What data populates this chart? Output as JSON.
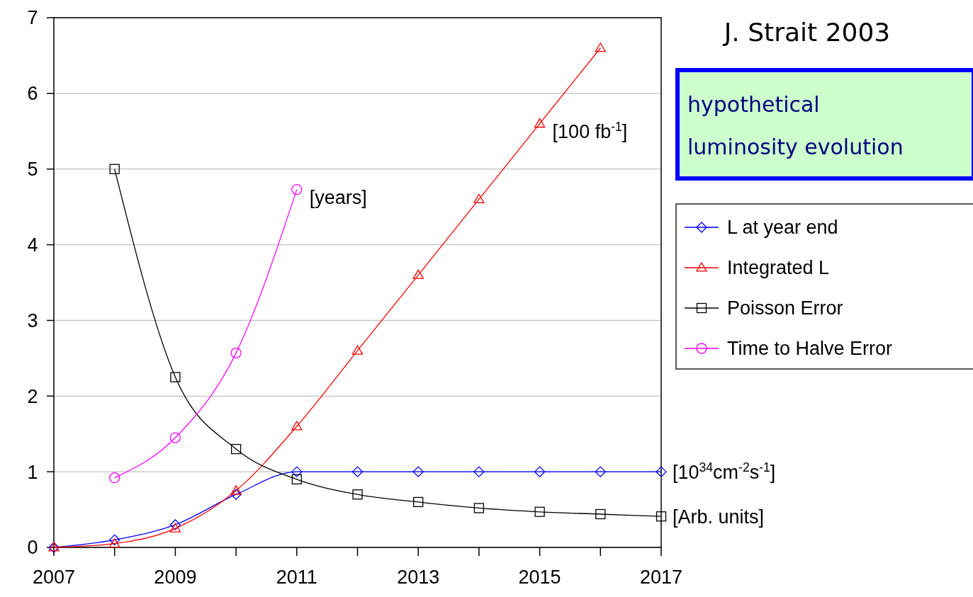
{
  "chart_data": {
    "type": "line",
    "title": "J. Strait 2003",
    "subtitle": "hypothetical luminosity evolution",
    "x": [
      2007,
      2008,
      2009,
      2010,
      2011,
      2012,
      2013,
      2014,
      2015,
      2016,
      2017
    ],
    "series": [
      {
        "name": "L at year end",
        "color": "#0000ff",
        "marker": "diamond",
        "values": [
          0,
          0.1,
          0.3,
          0.7,
          1,
          1,
          1,
          1,
          1,
          1,
          1
        ]
      },
      {
        "name": "Integrated L",
        "color": "#ff0000",
        "marker": "triangle",
        "values": [
          0,
          0.05,
          0.25,
          0.75,
          1.6,
          2.6,
          3.6,
          4.6,
          5.6,
          6.6,
          null
        ]
      },
      {
        "name": "Poisson Error",
        "color": "#000000",
        "marker": "square",
        "values": [
          null,
          5,
          2.25,
          1.3,
          0.9,
          0.7,
          0.6,
          0.52,
          0.47,
          0.44,
          0.41
        ]
      },
      {
        "name": "Time to Halve Error",
        "color": "#ff00ff",
        "marker": "circle",
        "values": [
          null,
          0.92,
          1.45,
          2.57,
          4.73,
          null,
          null,
          null,
          null,
          null,
          null
        ]
      }
    ],
    "xlim": [
      2007,
      2017
    ],
    "xticks": [
      2007,
      {
        "value": 2008,
        "label": null
      },
      2009,
      {
        "value": 2010,
        "label": null
      },
      2011,
      {
        "value": 2012,
        "label": null
      },
      2013,
      {
        "value": 2014,
        "label": null
      },
      2015,
      {
        "value": 2016,
        "label": null
      },
      2017
    ],
    "ylim": [
      0,
      7
    ],
    "yticks": [
      0,
      1,
      2,
      3,
      4,
      5,
      6,
      7
    ],
    "grid": "y",
    "legend": "right",
    "annotations": [
      {
        "text": "[years]",
        "x": 2011,
        "y": 4.73
      },
      {
        "text": "[100 fb$^{-1}$]",
        "x": 2015,
        "y": 5.6
      },
      {
        "text": "[10$^{34}$cm$^{-2}$s$^{-1}$]",
        "x": 2017,
        "y": 1
      },
      {
        "text": "[Arb. units]",
        "x": 2017,
        "y": 0.41
      }
    ]
  }
}
